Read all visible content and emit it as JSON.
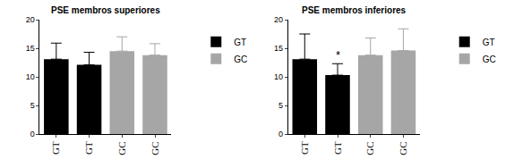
{
  "chart_data": [
    {
      "type": "bar",
      "title": "PSE membros superiores",
      "categories": [
        "GT",
        "GT",
        "GC",
        "GC"
      ],
      "series": [
        {
          "name": "GT",
          "color": "#000000",
          "values": [
            13.1,
            12.1,
            null,
            null
          ],
          "errors": [
            2.8,
            2.2,
            null,
            null
          ]
        },
        {
          "name": "GC",
          "color": "#a6a6a6",
          "values": [
            null,
            null,
            14.5,
            13.8
          ],
          "errors": [
            null,
            null,
            2.5,
            2.0
          ]
        }
      ],
      "ylim": [
        0,
        20
      ],
      "yticks": [
        0,
        5,
        10,
        15,
        20
      ],
      "grid": false,
      "legend": "right"
    },
    {
      "type": "bar",
      "title": "PSE membros inferiores",
      "categories": [
        "GT",
        "GT",
        "GC",
        "GC"
      ],
      "series": [
        {
          "name": "GT",
          "color": "#000000",
          "values": [
            13.1,
            10.3,
            null,
            null
          ],
          "errors": [
            4.4,
            2.0,
            null,
            null
          ]
        },
        {
          "name": "GC",
          "color": "#a6a6a6",
          "values": [
            null,
            null,
            13.8,
            14.6
          ],
          "errors": [
            null,
            null,
            3.0,
            3.8
          ]
        }
      ],
      "annotations": [
        {
          "text": "*",
          "x": 1
        }
      ],
      "ylim": [
        0,
        20
      ],
      "yticks": [
        0,
        5,
        10,
        15,
        20
      ],
      "grid": false,
      "legend": "right"
    }
  ]
}
